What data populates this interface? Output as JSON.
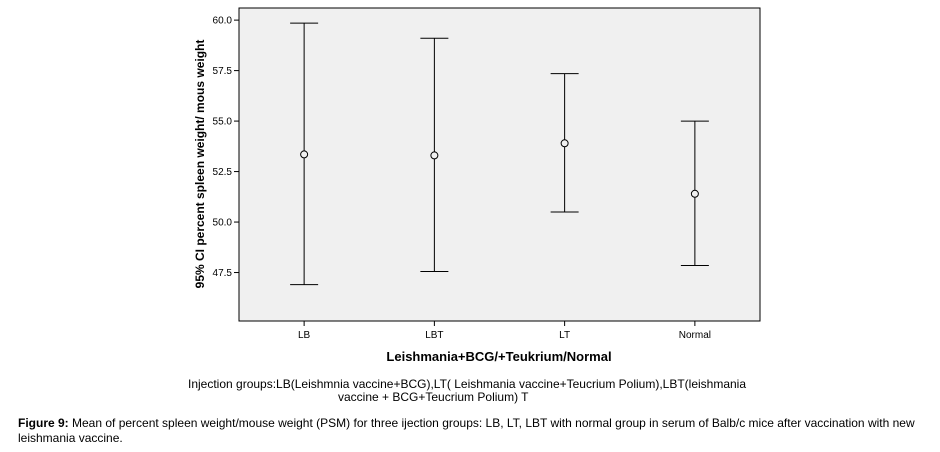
{
  "chart_data": {
    "type": "errorbar",
    "xlabel": "Leishmania+BCG/+Teukrium/Normal",
    "ylabel": "95% CI percent spleen weight/ mous weight",
    "ylim": [
      45.1,
      60.6
    ],
    "yticks": [
      47.5,
      50.0,
      52.5,
      55.0,
      57.5,
      60.0
    ],
    "ytick_labels": [
      "47.5",
      "50.0",
      "52.5",
      "55.0",
      "57.5",
      "60.0"
    ],
    "categories": [
      "LB",
      "LBT",
      "LT",
      "Normal"
    ],
    "mean": [
      53.35,
      53.3,
      53.9,
      51.4
    ],
    "lower": [
      46.9,
      47.55,
      50.5,
      47.85
    ],
    "upper": [
      59.85,
      59.1,
      57.35,
      55.0
    ],
    "grid": false,
    "colors": {
      "plot_background": "#f0f0f0",
      "axis": "#000000",
      "marks": "#000000"
    }
  },
  "note": {
    "line1": "Injection groups:LB(Leishmnia vaccine+BCG),LT( Leishmania vaccine+Teucrium Polium),LBT(leishmania",
    "line2": "vaccine + BCG+Teucrium Polium)    T"
  },
  "caption": {
    "label": "Figure 9:",
    "text": " Mean of percent spleen weight/mouse weight (PSM) for three ijection groups: LB, LT, LBT with normal group in serum of Balb/c mice after vaccination with new leishmania vaccine."
  }
}
